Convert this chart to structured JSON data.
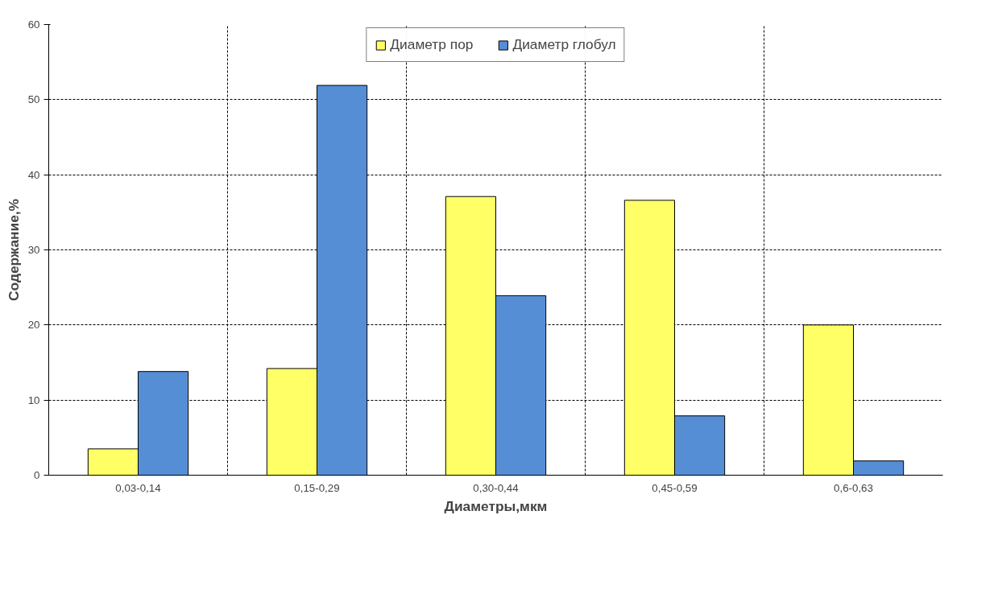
{
  "chart_data": {
    "type": "bar",
    "xlabel": "Диаметры,мкм",
    "ylabel": "Содержание,%",
    "categories": [
      "0,03-0,14",
      "0,15-0,29",
      "0,30-0,44",
      "0,45-0,59",
      "0,6-0,63"
    ],
    "series": [
      {
        "name": "Диаметр пор",
        "color": "#ffff66",
        "values": [
          3.5,
          14.2,
          37.1,
          36.6,
          20.0
        ]
      },
      {
        "name": "Диаметр глобул",
        "color": "#558ed5",
        "values": [
          13.8,
          51.9,
          23.9,
          7.9,
          1.9
        ]
      }
    ],
    "ylim": [
      0,
      60
    ],
    "yticks": [
      0,
      10,
      20,
      30,
      40,
      50,
      60
    ],
    "grid": true,
    "legend": "top"
  }
}
